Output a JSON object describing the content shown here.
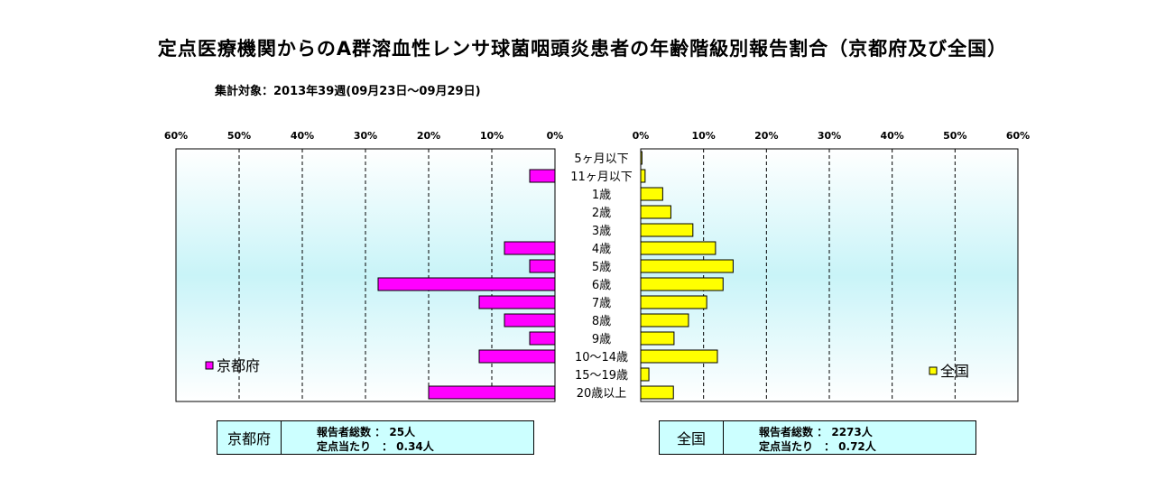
{
  "title": "定点医療機関からのA群溶血性レンサ球菌咽頭炎患者の年齢階級別報告割合（京都府及び全国）",
  "subtitle": "集計対象：2013年39週(09月23日～09月29日)",
  "chart_data": {
    "type": "bar",
    "orientation": "horizontal",
    "layout": "back-to-back",
    "categories": [
      "5ヶ月以下",
      "11ヶ月以下",
      "1歳",
      "2歳",
      "3歳",
      "4歳",
      "5歳",
      "6歳",
      "7歳",
      "8歳",
      "9歳",
      "10～14歳",
      "15～19歳",
      "20歳以上"
    ],
    "series": [
      {
        "name": "京都府",
        "side": "left",
        "color": "#ff00ff",
        "values": [
          0,
          4,
          0,
          0,
          0,
          8,
          4,
          28,
          12,
          8,
          4,
          12,
          0,
          20
        ]
      },
      {
        "name": "全国",
        "side": "right",
        "color": "#ffff00",
        "values": [
          0.2,
          0.7,
          3.5,
          4.8,
          8.3,
          11.9,
          14.7,
          13.1,
          10.5,
          7.6,
          5.3,
          12.2,
          1.3,
          5.2
        ]
      }
    ],
    "xlim": [
      0,
      60
    ],
    "tick_labels_left": [
      "60%",
      "50%",
      "40%",
      "30%",
      "20%",
      "10%",
      "0%"
    ],
    "tick_labels_right": [
      "0%",
      "10%",
      "20%",
      "30%",
      "40%",
      "50%",
      "60%"
    ],
    "grid": "vertical dashed"
  },
  "legend": {
    "left_label": "京都府",
    "right_label": "全国"
  },
  "kyoto_box": {
    "name": "京都府",
    "line1": "報告者総数 ： 25人",
    "line2": "定点当たり　： 0.34人"
  },
  "national_box": {
    "name": "全国",
    "line1": "報告者総数 ： 2273人",
    "line2": "定点当たり　： 0.72人"
  }
}
